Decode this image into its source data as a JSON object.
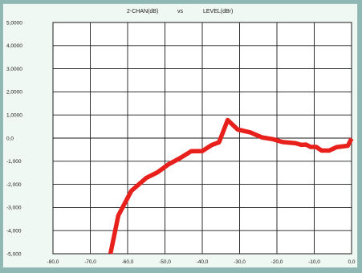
{
  "chart_data": {
    "type": "line",
    "title": {
      "left": "2-CHAN(dB)",
      "middle": "vs",
      "right": "LEVEL(dBr)"
    },
    "xlabel": "",
    "ylabel": "",
    "xlim": [
      -80,
      0
    ],
    "ylim": [
      -5,
      5
    ],
    "x_tick_labels": [
      "-80,0",
      "-70,0",
      "-60,0",
      "-50,0",
      "-40,0",
      "-30,0",
      "-20,0",
      "-10,0",
      "0,0"
    ],
    "y_tick_labels": [
      "5,0000",
      "4,0000",
      "3,0000",
      "2,0000",
      "1,0000",
      "0,0",
      "-1,000",
      "-2,000",
      "-3,000",
      "-4,000",
      "-5,000"
    ],
    "grid": true,
    "series": [
      {
        "color": "#e8201c",
        "points": [
          [
            -64.6,
            -5.0
          ],
          [
            -62.5,
            -3.35
          ],
          [
            -59.0,
            -2.28
          ],
          [
            -55.0,
            -1.72
          ],
          [
            -52.0,
            -1.48
          ],
          [
            -49.0,
            -1.13
          ],
          [
            -46.0,
            -0.87
          ],
          [
            -43.0,
            -0.57
          ],
          [
            -40.0,
            -0.56
          ],
          [
            -37.5,
            -0.3
          ],
          [
            -35.5,
            -0.18
          ],
          [
            -33.2,
            0.78
          ],
          [
            -30.5,
            0.37
          ],
          [
            -27.0,
            0.24
          ],
          [
            -24.0,
            0.03
          ],
          [
            -21.0,
            -0.05
          ],
          [
            -18.5,
            -0.17
          ],
          [
            -15.0,
            -0.22
          ],
          [
            -13.5,
            -0.29
          ],
          [
            -12.2,
            -0.28
          ],
          [
            -11.0,
            -0.38
          ],
          [
            -9.5,
            -0.38
          ],
          [
            -8.0,
            -0.54
          ],
          [
            -6.0,
            -0.54
          ],
          [
            -4.0,
            -0.39
          ],
          [
            -1.0,
            -0.33
          ],
          [
            0.0,
            -0.02
          ]
        ]
      }
    ]
  }
}
